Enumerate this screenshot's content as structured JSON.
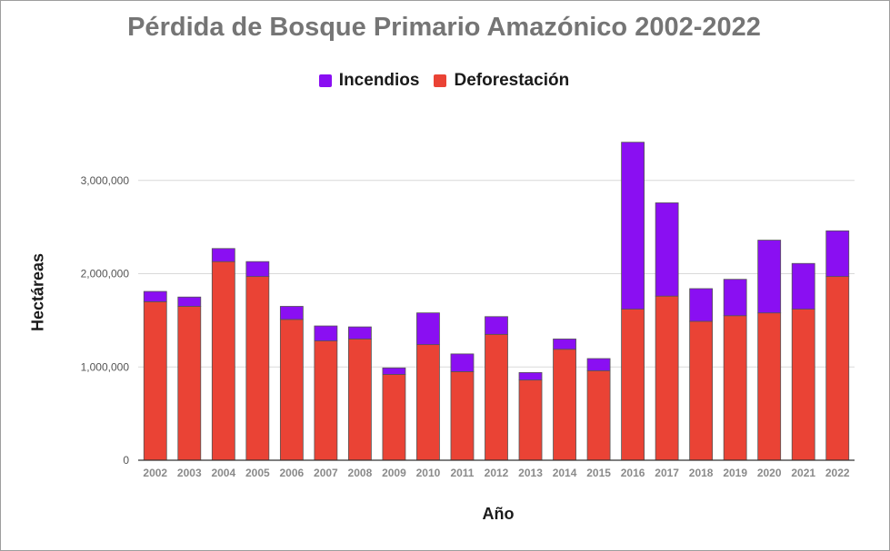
{
  "chart_data": {
    "type": "bar",
    "stacked": true,
    "title": "Pérdida de Bosque Primario Amazónico 2002-2022",
    "xlabel": "Año",
    "ylabel": "Hectáreas",
    "ylim": [
      0,
      3500000
    ],
    "yticks": [
      0,
      1000000,
      2000000,
      3000000
    ],
    "ytick_labels": [
      "0",
      "1,000,000",
      "2,000,000",
      "3,000,000"
    ],
    "grid": true,
    "legend_position": "top",
    "categories": [
      "2002",
      "2003",
      "2004",
      "2005",
      "2006",
      "2007",
      "2008",
      "2009",
      "2010",
      "2011",
      "2012",
      "2013",
      "2014",
      "2015",
      "2016",
      "2017",
      "2018",
      "2019",
      "2020",
      "2021",
      "2022"
    ],
    "series": [
      {
        "name": "Deforestación",
        "color": "#ea4335",
        "values": [
          1700000,
          1650000,
          2130000,
          1970000,
          1510000,
          1280000,
          1300000,
          920000,
          1240000,
          950000,
          1350000,
          860000,
          1190000,
          960000,
          1620000,
          1760000,
          1490000,
          1550000,
          1580000,
          1620000,
          1970000
        ]
      },
      {
        "name": "Incendios",
        "color": "#8a0ff2",
        "values": [
          110000,
          100000,
          140000,
          160000,
          140000,
          160000,
          130000,
          70000,
          340000,
          190000,
          190000,
          80000,
          110000,
          130000,
          1790000,
          1000000,
          350000,
          390000,
          780000,
          490000,
          490000
        ]
      }
    ]
  },
  "legend": [
    {
      "name": "Incendios",
      "color": "#8a0ff2"
    },
    {
      "name": "Deforestación",
      "color": "#ea4335"
    }
  ]
}
